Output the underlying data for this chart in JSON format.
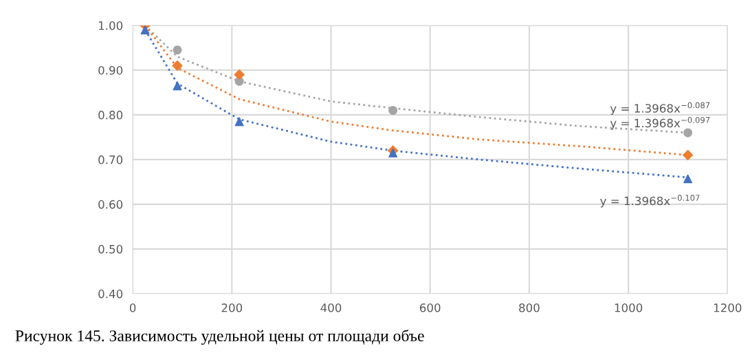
{
  "chart_data": {
    "type": "scatter",
    "xlim": [
      0,
      1200
    ],
    "xticks": [
      0,
      200,
      400,
      600,
      800,
      1000,
      1200
    ],
    "ylim": [
      0.4,
      1.0
    ],
    "yticks": [
      {
        "value": 0.4,
        "label": "0.40"
      },
      {
        "value": 0.5,
        "label": "0.50"
      },
      {
        "value": 0.6,
        "label": "0.60"
      },
      {
        "value": 0.7,
        "label": "0.70"
      },
      {
        "value": 0.8,
        "label": "0.80"
      },
      {
        "value": 0.9,
        "label": "0.90"
      },
      {
        "value": 1.0,
        "label": "1.00"
      }
    ],
    "grid": true,
    "legend": false,
    "series": [
      {
        "type": "line",
        "color": "#a5a5a5",
        "line_style": "dotted",
        "marker": "none",
        "x": [
          25,
          90,
          215,
          400,
          525,
          700,
          900,
          1120
        ],
        "values": [
          1.0,
          0.93,
          0.875,
          0.83,
          0.815,
          0.795,
          0.775,
          0.76
        ]
      },
      {
        "type": "line",
        "color": "#ed7d31",
        "line_style": "dotted",
        "marker": "none",
        "x": [
          25,
          90,
          215,
          400,
          525,
          700,
          900,
          1120
        ],
        "values": [
          1.0,
          0.905,
          0.835,
          0.785,
          0.765,
          0.745,
          0.73,
          0.71
        ]
      },
      {
        "type": "line",
        "color": "#4472c4",
        "line_style": "dotted",
        "marker": "none",
        "x": [
          25,
          90,
          215,
          400,
          525,
          700,
          900,
          1120
        ],
        "values": [
          0.99,
          0.87,
          0.79,
          0.74,
          0.72,
          0.7,
          0.68,
          0.66
        ]
      },
      {
        "color": "#a5a5a5",
        "marker": "circle",
        "x": [
          90,
          215,
          525,
          1120
        ],
        "values": [
          0.945,
          0.875,
          0.81,
          0.76
        ]
      },
      {
        "color": "#ed7d31",
        "marker": "diamond",
        "x": [
          25,
          90,
          215,
          525,
          1120
        ],
        "values": [
          1.0,
          0.91,
          0.89,
          0.72,
          0.71
        ]
      },
      {
        "color": "#4472c4",
        "marker": "triangle",
        "x": [
          25,
          90,
          215,
          525,
          1120
        ],
        "values": [
          0.99,
          0.865,
          0.785,
          0.715,
          0.657
        ]
      }
    ],
    "annotations": [
      "y = 1.3968x$^{−0.087}$",
      "y = 1.3968x$^{−0.097}$",
      "y = 1.3968x$^{−0.107}$",
      "Рисунок 145. Зависимость удельной цены от площади объе"
    ]
  }
}
